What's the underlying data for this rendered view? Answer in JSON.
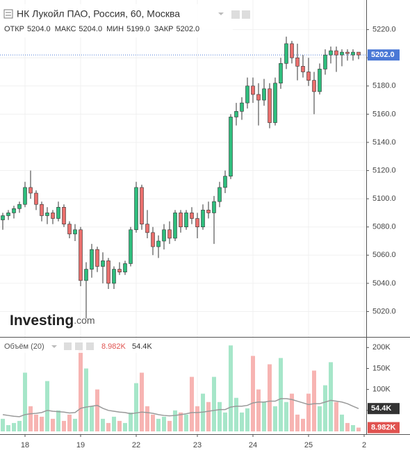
{
  "chart_data": {
    "type": "candlestick",
    "title": "НК Лукойл ПАО, Россия, 60, Москва",
    "legend": [
      {
        "name": "ОТКР",
        "value": 5204,
        "label": "5204.0"
      },
      {
        "name": "МАКС",
        "value": 5204,
        "label": "5204.0"
      },
      {
        "name": "МИН",
        "value": 5199,
        "label": "5199.0"
      },
      {
        "name": "ЗАКР",
        "value": 5202,
        "label": "5202.0"
      }
    ],
    "logo": [
      "Investing",
      ".com"
    ],
    "categories": [
      null,
      null,
      null,
      null,
      "18",
      null,
      null,
      null,
      null,
      null,
      null,
      null,
      null,
      null,
      "19",
      null,
      null,
      null,
      null,
      null,
      null,
      null,
      null,
      null,
      "22",
      null,
      null,
      null,
      null,
      null,
      null,
      null,
      null,
      null,
      null,
      "23",
      null,
      null,
      null,
      null,
      null,
      null,
      null,
      null,
      null,
      "24",
      null,
      null,
      null,
      null,
      null,
      null,
      null,
      null,
      null,
      "25",
      null,
      null,
      null,
      null,
      null,
      null,
      null,
      null,
      null,
      "2"
    ],
    "open": [
      5085,
      5088,
      5090,
      5093,
      5096,
      5108,
      5104,
      5096,
      5088,
      5090,
      5086,
      5094,
      5082,
      5075,
      5078,
      5042,
      5050,
      5064,
      5052,
      5056,
      5040,
      5050,
      5048,
      5054,
      5078,
      5108,
      5082,
      5076,
      5066,
      5070,
      5078,
      5072,
      5090,
      5080,
      5090,
      5086,
      5080,
      5092,
      5090,
      5098,
      5108,
      5116,
      5158,
      5162,
      5168,
      5180,
      5174,
      5170,
      5178,
      5154,
      5182,
      5196,
      5210,
      5200,
      5194,
      5190,
      5184,
      5176,
      5192,
      5202,
      5205,
      5202,
      5204,
      5202,
      5204,
      null
    ],
    "high": [
      5090,
      5092,
      5095,
      5098,
      5112,
      5120,
      5106,
      5098,
      5094,
      5092,
      5098,
      5096,
      5084,
      5082,
      5080,
      5055,
      5068,
      5066,
      5062,
      5058,
      5052,
      5055,
      5056,
      5080,
      5112,
      5110,
      5092,
      5080,
      5074,
      5082,
      5084,
      5092,
      5092,
      5092,
      5094,
      5090,
      5096,
      5098,
      5102,
      5112,
      5120,
      5160,
      5168,
      5172,
      5186,
      5186,
      5182,
      5185,
      5182,
      5186,
      5200,
      5215,
      5212,
      5210,
      5202,
      5200,
      5190,
      5196,
      5206,
      5208,
      5208,
      5206,
      5206,
      5206,
      5204,
      null
    ],
    "low": [
      5078,
      5085,
      5086,
      5090,
      5094,
      5100,
      5092,
      5084,
      5082,
      5082,
      5084,
      5080,
      5072,
      5070,
      5038,
      5015,
      5044,
      5048,
      5040,
      5036,
      5036,
      5046,
      5046,
      5052,
      5076,
      5078,
      5072,
      5060,
      5058,
      5064,
      5068,
      5070,
      5076,
      5078,
      5082,
      5072,
      5078,
      5086,
      5068,
      5094,
      5104,
      5114,
      5152,
      5156,
      5164,
      5168,
      5152,
      5166,
      5150,
      5152,
      5178,
      5192,
      5196,
      5184,
      5186,
      5180,
      5160,
      5174,
      5188,
      5196,
      5190,
      5194,
      5198,
      5198,
      5199,
      null
    ],
    "close": [
      5088,
      5090,
      5093,
      5096,
      5108,
      5104,
      5096,
      5088,
      5090,
      5086,
      5094,
      5082,
      5075,
      5078,
      5042,
      5050,
      5064,
      5052,
      5056,
      5040,
      5050,
      5048,
      5054,
      5078,
      5108,
      5082,
      5076,
      5066,
      5070,
      5078,
      5072,
      5090,
      5080,
      5090,
      5086,
      5080,
      5092,
      5090,
      5098,
      5108,
      5116,
      5158,
      5162,
      5168,
      5180,
      5174,
      5170,
      5178,
      5154,
      5182,
      5196,
      5210,
      5200,
      5194,
      5190,
      5184,
      5176,
      5192,
      5202,
      5205,
      5202,
      5204,
      5203,
      5204,
      5202,
      null
    ],
    "up_color": "#2fbd7d",
    "down_color": "#ea6f6d",
    "ylim": [
      5002,
      5241
    ],
    "yticks": [
      {
        "value": 5020,
        "label": "5020.0"
      },
      {
        "value": 5040,
        "label": "5040.0"
      },
      {
        "value": 5060,
        "label": "5060.0"
      },
      {
        "value": 5080,
        "label": "5080.0"
      },
      {
        "value": 5100,
        "label": "5100.0"
      },
      {
        "value": 5120,
        "label": "5120.0"
      },
      {
        "value": 5140,
        "label": "5140.0"
      },
      {
        "value": 5160,
        "label": "5160.0"
      },
      {
        "value": 5180,
        "label": "5180.0"
      },
      {
        "value": 5200,
        "label": "5200.0"
      },
      {
        "value": 5220,
        "label": "5220.0"
      }
    ],
    "last_price": {
      "value": 5202,
      "label": "5202.0",
      "color": "#4a78d6"
    },
    "grid": true,
    "volume": {
      "title": "Объём (20)",
      "values": [
        30000,
        15000,
        20000,
        25000,
        140000,
        60000,
        40000,
        35000,
        120000,
        30000,
        50000,
        25000,
        40000,
        30000,
        200000,
        150000,
        60000,
        100000,
        30000,
        20000,
        35000,
        25000,
        20000,
        45000,
        115000,
        140000,
        60000,
        40000,
        30000,
        35000,
        25000,
        50000,
        45000,
        40000,
        130000,
        60000,
        90000,
        70000,
        130000,
        70000,
        45000,
        205000,
        80000,
        45000,
        55000,
        180000,
        100000,
        70000,
        160000,
        60000,
        175000,
        70000,
        90000,
        40000,
        30000,
        90000,
        145000,
        60000,
        110000,
        165000,
        70000,
        40000,
        20000,
        15000,
        8982,
        null
      ],
      "ma": [
        40000,
        38000,
        36000,
        35000,
        40000,
        42000,
        43000,
        45000,
        50000,
        48000,
        47000,
        46000,
        44000,
        45000,
        55000,
        58000,
        60000,
        62000,
        55000,
        50000,
        48000,
        46000,
        45000,
        42000,
        44000,
        46000,
        45000,
        43000,
        40000,
        38000,
        37000,
        38000,
        40000,
        42000,
        45000,
        45000,
        46000,
        48000,
        50000,
        52000,
        52000,
        58000,
        60000,
        60000,
        62000,
        68000,
        70000,
        70000,
        72000,
        72000,
        78000,
        78000,
        76000,
        72000,
        68000,
        64000,
        66000,
        66000,
        70000,
        74000,
        72000,
        70000,
        66000,
        60000,
        54400,
        null
      ],
      "current": {
        "value": 8982,
        "label": "8.982K",
        "color": "#e0524f"
      },
      "ma_current": {
        "value": 54400,
        "label": "54.4K",
        "color": "#333333"
      },
      "up_color": "#a6e6c9",
      "down_color": "#f7b4b2",
      "ma_color": "#999999",
      "ylim": [
        0,
        222000
      ],
      "yticks": [
        {
          "value": 50000,
          "label": "50K"
        },
        {
          "value": 100000,
          "label": "100K"
        },
        {
          "value": 150000,
          "label": "150K"
        },
        {
          "value": 200000,
          "label": "200K"
        }
      ]
    }
  }
}
